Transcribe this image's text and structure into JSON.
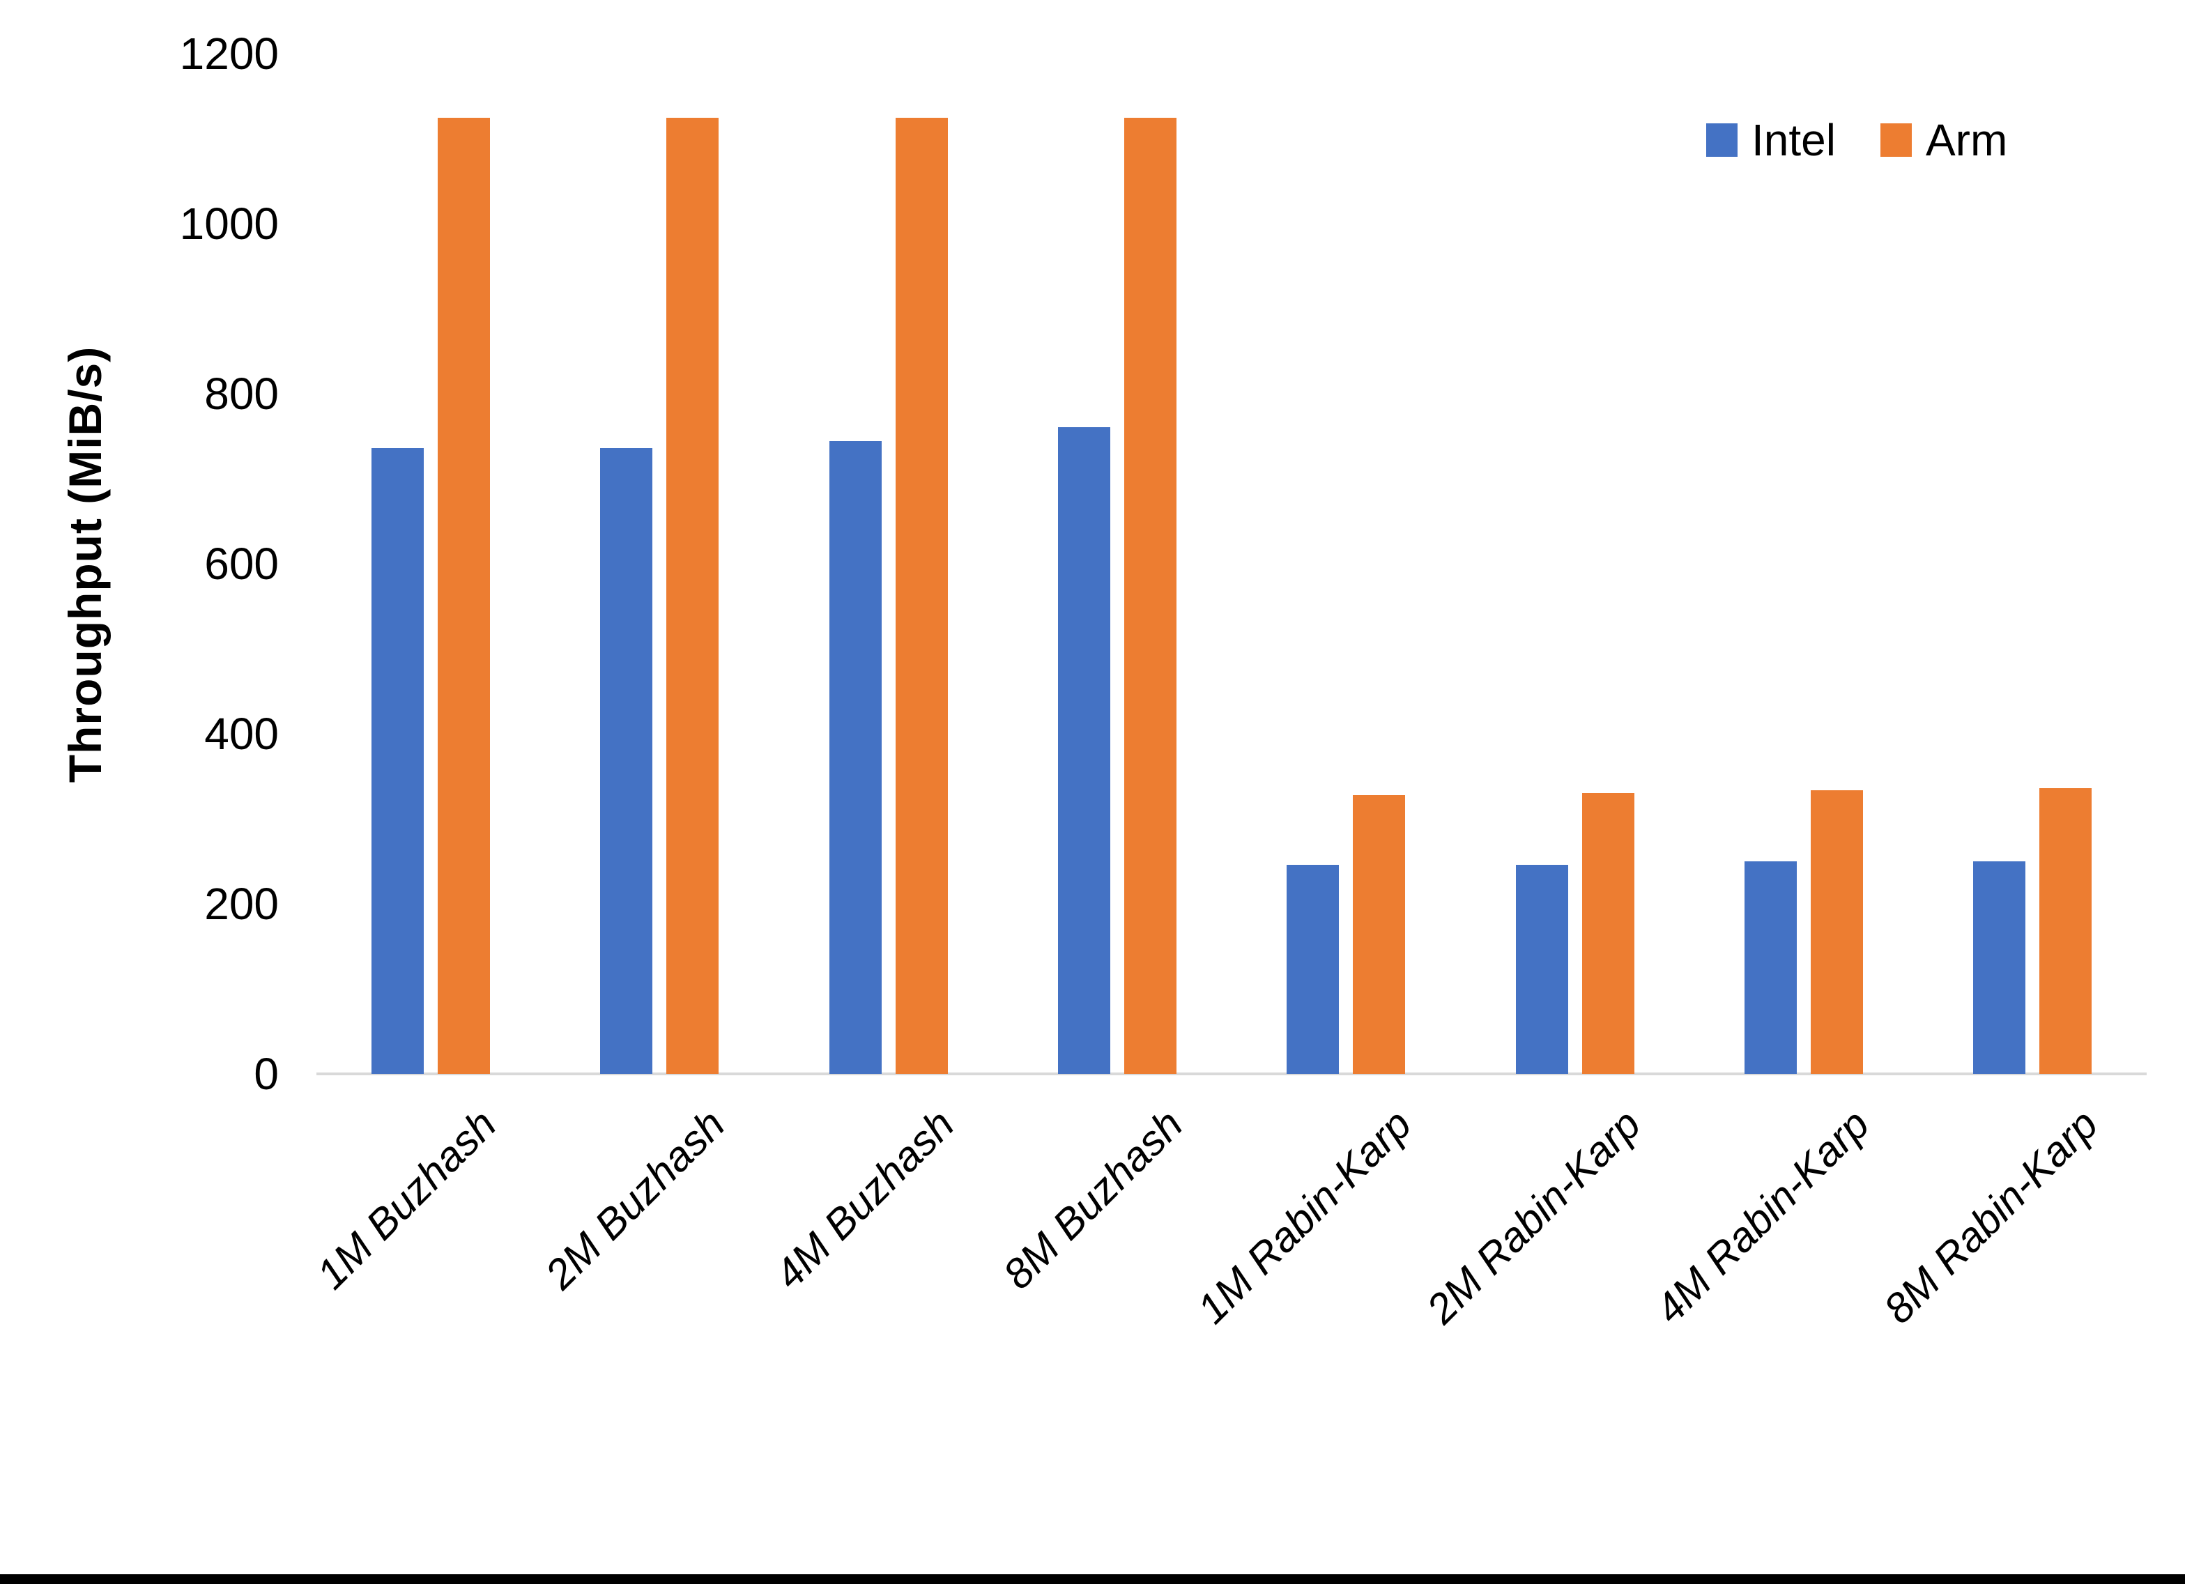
{
  "chart_data": {
    "type": "bar",
    "title": "",
    "xlabel": "",
    "ylabel": "Throughput (MiB/s)",
    "categories": [
      "1M Buzhash",
      "2M Buzhash",
      "4M Buzhash",
      "8M Buzhash",
      "1M Rabin-Karp",
      "2M Rabin-Karp",
      "4M Rabin-Karp",
      "8M Rabin-Karp"
    ],
    "series": [
      {
        "name": "Intel",
        "color": "#4472C4",
        "values": [
          736,
          736,
          744,
          761,
          246,
          246,
          250,
          250
        ]
      },
      {
        "name": "Arm",
        "color": "#ED7D31",
        "values": [
          1125,
          1125,
          1125,
          1125,
          328,
          330,
          334,
          336
        ]
      }
    ],
    "ylim": [
      0,
      1200
    ],
    "yticks": [
      0,
      200,
      400,
      600,
      800,
      1000,
      1200
    ],
    "grid": false,
    "legend_position": "top-right",
    "axis_line_color": "#D9D9D9",
    "text_color": "#000000",
    "background": "#FFFFFF",
    "bottom_border_color": "#000000"
  }
}
